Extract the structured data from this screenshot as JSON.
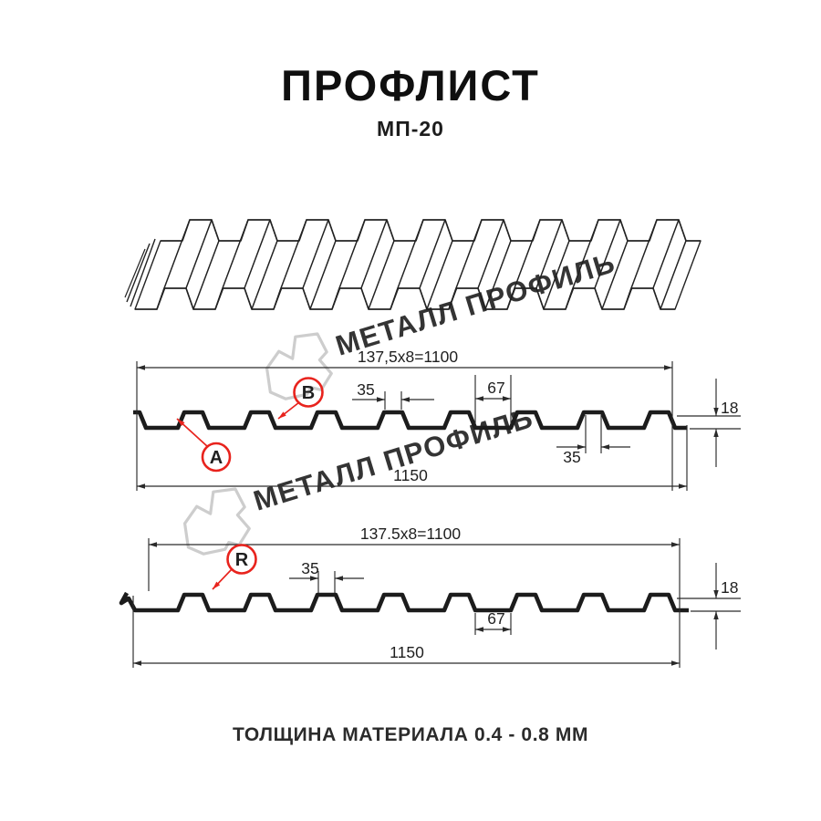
{
  "header": {
    "title": "ПРОФЛИСТ",
    "subtitle": "МП-20"
  },
  "footer": {
    "text": "ТОЛЩИНА МАТЕРИАЛА 0.4 - 0.8 ММ"
  },
  "watermark": {
    "text": "МЕТАЛЛ ПРОФИЛЬ"
  },
  "colors": {
    "red": "#e8231d",
    "line": "#1c1c1c",
    "dim": "#2a2a2a",
    "watermark": "#c8c8c8"
  },
  "diagram_top": {
    "coverage_width": "137,5x8=1100",
    "overall_width": "1150",
    "rib_width_top": "35",
    "rib_width_bottom": "35",
    "valley_width": "67",
    "profile_height": "18",
    "marker_a": "A",
    "marker_b": "B"
  },
  "diagram_bottom": {
    "coverage_width": "137.5x8=1100",
    "overall_width": "1150",
    "rib_width": "35",
    "valley_width": "67",
    "profile_height": "18",
    "marker_r": "R"
  }
}
